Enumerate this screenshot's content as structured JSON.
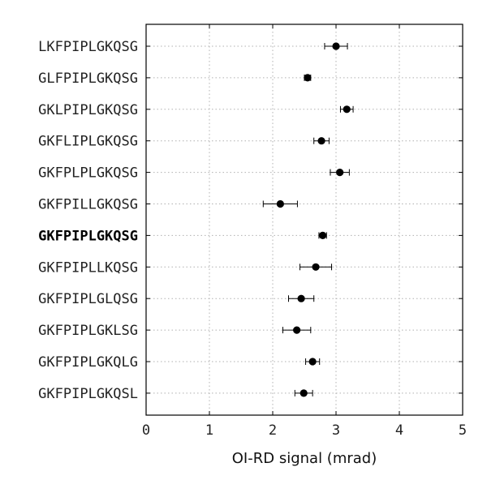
{
  "chart_data": {
    "type": "scatter",
    "orientation": "horizontal",
    "xlabel": "OI-RD signal (mrad)",
    "xlim": [
      0,
      5
    ],
    "xticks": [
      0,
      1,
      2,
      3,
      4,
      5
    ],
    "grid": true,
    "categories": [
      "LKFPIPLGKQSG",
      "GLFPIPLGKQSG",
      "GKLPIPLGKQSG",
      "GKFLIPLGKQSG",
      "GKFPLPLGKQSG",
      "GKFPILLGKQSG",
      "GKFPIPLGKQSG",
      "GKFPIPLLKQSG",
      "GKFPIPLGLQSG",
      "GKFPIPLGKLSG",
      "GKFPIPLGKQLG",
      "GKFPIPLGKQSL"
    ],
    "highlighted_category": "GKFPIPLGKQSG",
    "values": [
      3.0,
      2.55,
      3.17,
      2.77,
      3.06,
      2.12,
      2.79,
      2.68,
      2.45,
      2.38,
      2.63,
      2.49
    ],
    "errors": [
      0.18,
      0.05,
      0.1,
      0.12,
      0.15,
      0.27,
      0.06,
      0.25,
      0.2,
      0.22,
      0.11,
      0.14
    ]
  }
}
